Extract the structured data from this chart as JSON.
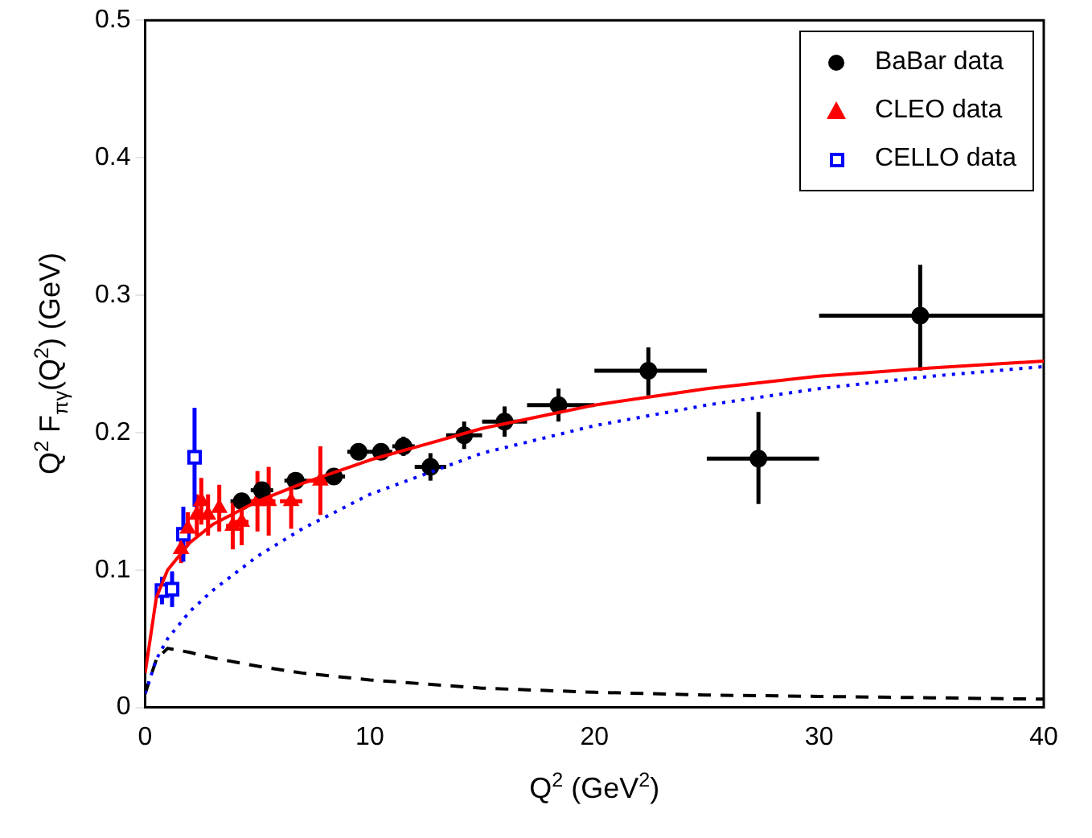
{
  "chart_data": {
    "type": "scatter",
    "xlabel": "Q$^{2}$ (GeV$^{2}$)",
    "ylabel": "Q$^{2}$ F$_{πγ}$(Q$^{2}$) (GeV)",
    "xlim": [
      0,
      40
    ],
    "ylim": [
      0,
      0.5
    ],
    "xticks": [
      0,
      10,
      20,
      30,
      40
    ],
    "yticks": [
      0,
      0.1,
      0.2,
      0.3,
      0.4,
      0.5
    ],
    "grid": false,
    "legend": "top right",
    "series": [
      {
        "type": "line",
        "color": "#ff0000",
        "line_style": "solid",
        "marker": "none",
        "x": [
          0,
          0.5,
          1,
          2,
          3,
          5,
          7,
          10,
          15,
          20,
          25,
          30,
          35,
          40
        ],
        "values": [
          0.025,
          0.08,
          0.1,
          0.12,
          0.133,
          0.15,
          0.163,
          0.18,
          0.203,
          0.22,
          0.232,
          0.241,
          0.247,
          0.252
        ]
      },
      {
        "type": "line",
        "color": "#0000ff",
        "line_style": "dotted",
        "marker": "none",
        "x": [
          0,
          0.5,
          1,
          2,
          3,
          5,
          7,
          10,
          15,
          20,
          25,
          30,
          35,
          40
        ],
        "values": [
          0.01,
          0.035,
          0.05,
          0.07,
          0.085,
          0.11,
          0.13,
          0.155,
          0.185,
          0.205,
          0.22,
          0.232,
          0.241,
          0.248
        ]
      },
      {
        "type": "line",
        "color": "#000000",
        "line_style": "dashed",
        "marker": "none",
        "x": [
          0,
          0.5,
          1,
          2,
          3,
          5,
          7,
          10,
          15,
          20,
          25,
          30,
          35,
          40
        ],
        "values": [
          0.01,
          0.035,
          0.043,
          0.04,
          0.036,
          0.03,
          0.025,
          0.02,
          0.014,
          0.011,
          0.009,
          0.008,
          0.007,
          0.006
        ]
      },
      {
        "name": "BaBar data",
        "type": "scatter",
        "color": "#000000",
        "marker": "circle",
        "x": [
          4.3,
          5.2,
          6.7,
          8.4,
          9.5,
          10.5,
          11.5,
          12.7,
          14.2,
          16.0,
          18.4,
          22.4,
          27.3,
          34.5
        ],
        "values": [
          0.15,
          0.158,
          0.165,
          0.168,
          0.186,
          0.186,
          0.19,
          0.175,
          0.198,
          0.208,
          0.22,
          0.245,
          0.181,
          0.285
        ],
        "errors": [
          0.006,
          0.006,
          0.006,
          0.006,
          0.006,
          0.006,
          0.007,
          0.01,
          0.01,
          0.011,
          0.012,
          [
            0.227,
            0.262
          ],
          [
            0.148,
            0.215
          ],
          [
            0.245,
            0.322
          ]
        ],
        "xerrors": [
          0.5,
          0.5,
          0.5,
          0.5,
          0.5,
          0.5,
          0.5,
          0.7,
          0.8,
          1,
          [
            17,
            20
          ],
          [
            20,
            25
          ],
          [
            25,
            30
          ],
          [
            30,
            40
          ]
        ]
      },
      {
        "name": "CLEO data",
        "type": "scatter",
        "color": "#ff0000",
        "marker": "triangle",
        "x": [
          1.6,
          1.9,
          2.3,
          2.5,
          2.8,
          3.3,
          3.9,
          4.3,
          5.0,
          5.5,
          6.5,
          7.8
        ],
        "values": [
          0.115,
          0.13,
          0.14,
          0.15,
          0.14,
          0.145,
          0.132,
          0.135,
          0.15,
          0.15,
          0.15,
          0.165
        ],
        "errors": [
          0.01,
          0.012,
          0.015,
          0.017,
          0.015,
          0.017,
          0.017,
          0.017,
          0.022,
          0.025,
          0.02,
          0.025
        ],
        "xerrors": [
          0.1,
          0.1,
          0.1,
          0.1,
          0.2,
          0.2,
          0.3,
          0.3,
          0.3,
          0.3,
          0.5,
          0.6
        ]
      },
      {
        "name": "CELLO data",
        "type": "scatter",
        "color": "#0000ff",
        "marker": "square",
        "x": [
          0.75,
          1.2,
          1.7,
          2.2
        ],
        "values": [
          0.085,
          0.086,
          0.126,
          0.182
        ],
        "errors": [
          0.01,
          0.013,
          0.02,
          0.036
        ],
        "xerrors": [
          0.2,
          0.2,
          0.2,
          0.2
        ]
      }
    ]
  }
}
